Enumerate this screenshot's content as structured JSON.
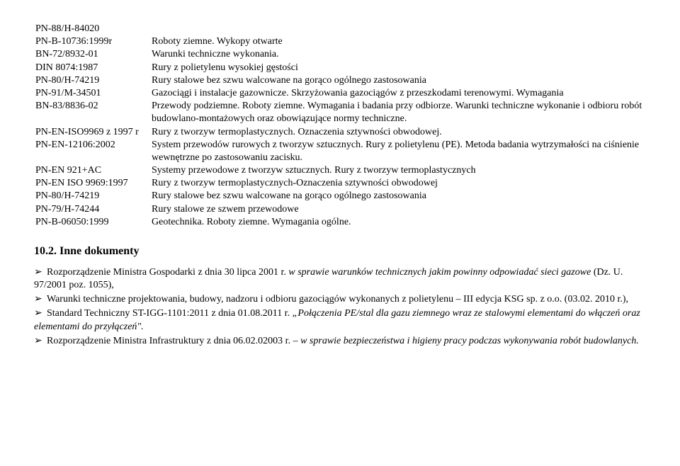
{
  "standards": [
    {
      "code": "PN-88/H-84020",
      "desc": ""
    },
    {
      "code": "PN-B-10736:1999r",
      "desc": "Roboty ziemne. Wykopy otwarte"
    },
    {
      "code": "BN-72/8932-01",
      "desc": "Warunki techniczne wykonania."
    },
    {
      "code": "DIN 8074:1987",
      "desc": "Rury z polietylenu wysokiej gęstości"
    },
    {
      "code": "PN-80/H-74219",
      "desc": "Rury stalowe bez szwu walcowane na gorąco ogólnego zastosowania"
    },
    {
      "code": "PN-91/M-34501",
      "desc": "Gazociągi i instalacje gazownicze. Skrzyżowania gazociągów z przeszkodami terenowymi. Wymagania"
    },
    {
      "code": "BN-83/8836-02",
      "desc": "Przewody podziemne. Roboty ziemne. Wymagania i badania przy odbiorze. Warunki techniczne wykonanie i odbioru robót budowlano-montażowych oraz obowiązujące normy techniczne."
    },
    {
      "code": "PN-EN-ISO9969 z 1997  r",
      "desc": "Rury z tworzyw termoplastycznych. Oznaczenia sztywności obwodowej."
    },
    {
      "code": "PN-EN-12106:2002",
      "desc": "System przewodów rurowych z tworzyw sztucznych. Rury z polietylenu (PE). Metoda badania wytrzymałości na ciśnienie wewnętrzne po zastosowaniu zacisku."
    },
    {
      "code": "PN-EN 921+AC",
      "desc": "Systemy przewodowe z tworzyw sztucznych. Rury z tworzyw termoplastycznych"
    },
    {
      "code": "PN-EN ISO 9969:1997",
      "desc": "Rury z tworzyw termoplastycznych-Oznaczenia sztywności obwodowej"
    },
    {
      "code": "PN-80/H-74219",
      "desc": "Rury stalowe bez szwu walcowane na gorąco ogólnego zastosowania"
    },
    {
      "code": "PN-79/H-74244",
      "desc": "Rury stalowe ze szwem przewodowe"
    },
    {
      "code": "PN-B-06050:1999",
      "desc": "Geotechnika. Roboty ziemne. Wymagania ogólne."
    }
  ],
  "section_heading": "10.2. Inne dokumenty",
  "para1": {
    "lead": "Rozporządzenie Ministra Gospodarki z dnia 30 lipca 2001 r. ",
    "italic": "w sprawie warunków technicznych jakim powinny odpowiadać sieci gazowe",
    "tail": " (Dz. U. 97/2001 poz. 1055),"
  },
  "para2": {
    "lead": "Warunki techniczne projektowania, budowy, nadzoru i odbioru gazociągów wykonanych  z polietylenu – III edycja KSG sp. z o.o. (03.02. 2010 r.),"
  },
  "para3": {
    "lead": "Standard Techniczny ST-IGG-1101:2011 z dnia 01.08.2011 r.  ",
    "italic": "„Połączenia PE/stal dla gazu ziemnego wraz ze stalowymi elementami do włączeń oraz elementami do przyłączeń\"."
  },
  "para4": {
    "lead": "Rozporządzenie Ministra Infrastruktury z dnia 06.02.02003 r. – ",
    "italic": "w sprawie bezpieczeństwa  i higieny pracy podczas wykonywania robót budowlanych."
  }
}
